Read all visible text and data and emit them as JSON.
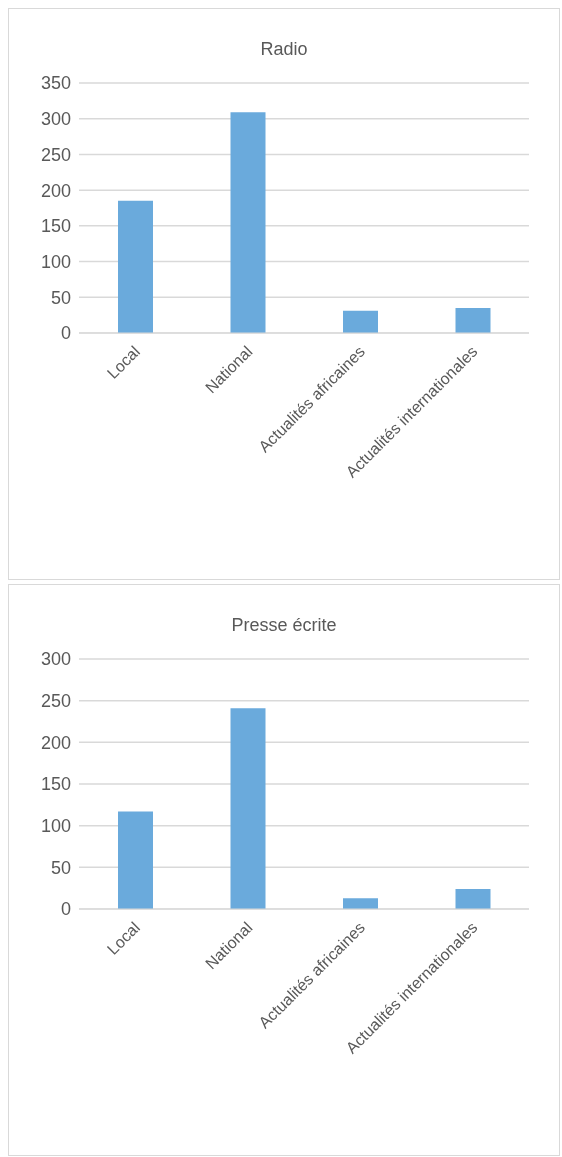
{
  "chart_data": [
    {
      "type": "bar",
      "title": "Radio",
      "categories": [
        "Local",
        "National",
        "Actualités africaines",
        "Actualités internationales"
      ],
      "values": [
        185,
        309,
        31,
        35
      ],
      "color": "#6aaadc",
      "ylim": [
        0,
        350
      ],
      "yticks": [
        0,
        50,
        100,
        150,
        200,
        250,
        300,
        350
      ],
      "grid": "y"
    },
    {
      "type": "bar",
      "title": "Presse écrite",
      "categories": [
        "Local",
        "National",
        "Actualités africaines",
        "Actualités internationales"
      ],
      "values": [
        117,
        241,
        13,
        24
      ],
      "color": "#6aaadc",
      "ylim": [
        0,
        300
      ],
      "yticks": [
        0,
        50,
        100,
        150,
        200,
        250,
        300
      ],
      "grid": "y"
    }
  ]
}
